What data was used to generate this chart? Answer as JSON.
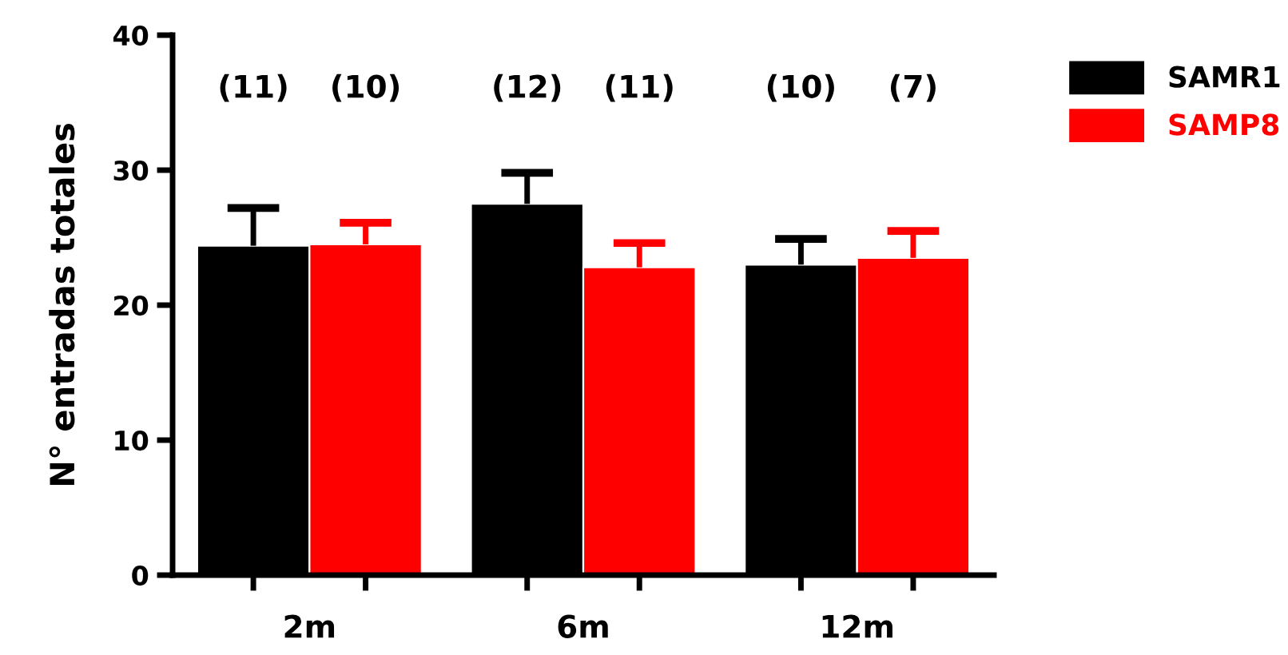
{
  "chart_data": {
    "type": "bar",
    "ylabel": "N° entradas totales",
    "categories": [
      "2m",
      "6m",
      "12m"
    ],
    "series": [
      {
        "name": "SAMR1",
        "color": "#000000",
        "values": [
          24.4,
          27.5,
          23.0
        ],
        "errors": [
          [
            24.4,
            27.2
          ],
          [
            27.5,
            29.8
          ],
          [
            23.0,
            24.9
          ]
        ]
      },
      {
        "name": "SAMP8",
        "color": "#ff0000",
        "values": [
          24.5,
          22.8,
          23.5
        ],
        "errors": [
          [
            24.5,
            26.1
          ],
          [
            22.8,
            24.6
          ],
          [
            23.5,
            25.5
          ]
        ]
      }
    ],
    "annotations": [
      "(11)",
      "(10)",
      "(12)",
      "(11)",
      "(10)",
      "(7)"
    ],
    "ylim": [
      0,
      40
    ],
    "yticks": [
      0,
      10,
      20,
      30,
      40
    ],
    "grid": false,
    "legend": "top right"
  }
}
